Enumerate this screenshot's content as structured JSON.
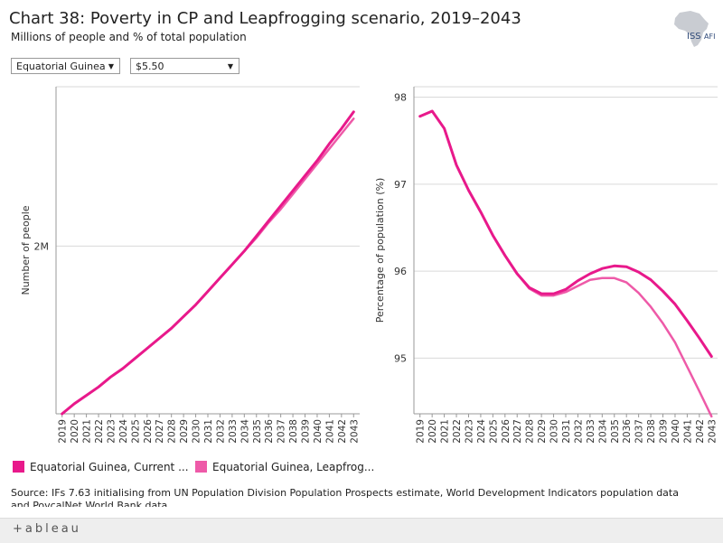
{
  "header": {
    "title": "Chart 38: Poverty in CP and Leapfrogging scenario, 2019–2043",
    "subtitle": "Millions of people and % of total population",
    "logo_text": "ISS",
    "logo_sub": "AFI"
  },
  "filters": {
    "country": "Equatorial Guinea",
    "threshold": "$5.50"
  },
  "colors": {
    "current_path": "#e8198b",
    "leapfrogging": "#ee5aa8",
    "grid": "#d9d9d9",
    "axis": "#999999"
  },
  "legend": [
    {
      "label": "Equatorial Guinea, Current ...",
      "color": "#e8198b"
    },
    {
      "label": "Equatorial Guinea, Leapfrog...",
      "color": "#ee5aa8"
    }
  ],
  "source": "Source: IFs 7.63 initialising from UN Population Division Population Prospects estimate, World Development Indicators population data and PovcalNet World Bank data",
  "footer": {
    "brand": "+ableau"
  },
  "chart_data": [
    {
      "type": "line",
      "title": "",
      "xlabel": "",
      "ylabel": "Number of people",
      "x": [
        2019,
        2020,
        2021,
        2022,
        2023,
        2024,
        2025,
        2026,
        2027,
        2028,
        2029,
        2030,
        2031,
        2032,
        2033,
        2034,
        2035,
        2036,
        2037,
        2038,
        2039,
        2040,
        2041,
        2042,
        2043
      ],
      "ylim": [
        1.0,
        2.95
      ],
      "yticks": [
        {
          "value": 2.0,
          "label": "2M"
        }
      ],
      "series": [
        {
          "name": "Equatorial Guinea, Current Path",
          "values": [
            1.0,
            1.06,
            1.11,
            1.16,
            1.22,
            1.27,
            1.33,
            1.39,
            1.45,
            1.51,
            1.58,
            1.65,
            1.73,
            1.81,
            1.89,
            1.97,
            2.06,
            2.15,
            2.24,
            2.33,
            2.42,
            2.51,
            2.61,
            2.7,
            2.8
          ]
        },
        {
          "name": "Equatorial Guinea, Leapfrogging",
          "values": [
            1.0,
            1.06,
            1.11,
            1.16,
            1.22,
            1.27,
            1.33,
            1.39,
            1.45,
            1.51,
            1.58,
            1.65,
            1.73,
            1.81,
            1.89,
            1.97,
            2.05,
            2.14,
            2.22,
            2.31,
            2.4,
            2.49,
            2.58,
            2.67,
            2.76
          ]
        }
      ]
    },
    {
      "type": "line",
      "title": "",
      "xlabel": "",
      "ylabel": "Percentage of population (%)",
      "x": [
        2019,
        2020,
        2021,
        2022,
        2023,
        2024,
        2025,
        2026,
        2027,
        2028,
        2029,
        2030,
        2031,
        2032,
        2033,
        2034,
        2035,
        2036,
        2037,
        2038,
        2039,
        2040,
        2041,
        2042,
        2043
      ],
      "ylim": [
        94.36,
        98.12
      ],
      "yticks": [
        {
          "value": 95,
          "label": "95"
        },
        {
          "value": 96,
          "label": "96"
        },
        {
          "value": 97,
          "label": "97"
        },
        {
          "value": 98,
          "label": "98"
        }
      ],
      "series": [
        {
          "name": "Equatorial Guinea, Current Path",
          "values": [
            97.78,
            97.84,
            97.64,
            97.22,
            96.93,
            96.68,
            96.41,
            96.18,
            95.97,
            95.81,
            95.74,
            95.74,
            95.79,
            95.89,
            95.97,
            96.03,
            96.06,
            96.05,
            95.99,
            95.9,
            95.77,
            95.62,
            95.43,
            95.23,
            95.02
          ]
        },
        {
          "name": "Equatorial Guinea, Leapfrogging",
          "values": [
            97.78,
            97.84,
            97.64,
            97.22,
            96.93,
            96.68,
            96.41,
            96.18,
            95.97,
            95.8,
            95.72,
            95.72,
            95.76,
            95.83,
            95.9,
            95.92,
            95.92,
            95.87,
            95.75,
            95.59,
            95.4,
            95.18,
            94.9,
            94.62,
            94.33
          ]
        }
      ]
    }
  ]
}
